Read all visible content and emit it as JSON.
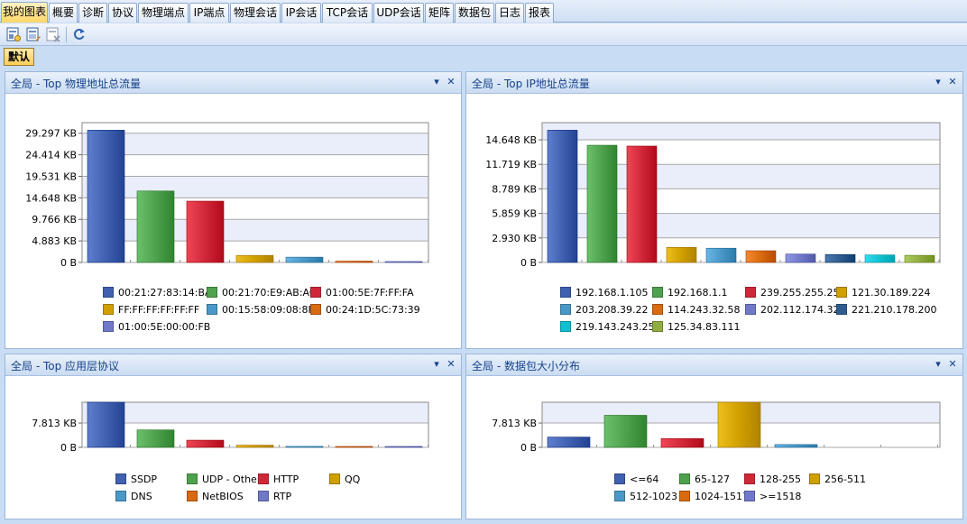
{
  "tabs": [
    {
      "label": "我的图表",
      "active": true
    },
    {
      "label": "概要"
    },
    {
      "label": "诊断"
    },
    {
      "label": "协议"
    },
    {
      "label": "物理端点"
    },
    {
      "label": "IP端点"
    },
    {
      "label": "物理会话"
    },
    {
      "label": "IP会话"
    },
    {
      "label": "TCP会话"
    },
    {
      "label": "UDP会话"
    },
    {
      "label": "矩阵"
    },
    {
      "label": "数据包"
    },
    {
      "label": "日志"
    },
    {
      "label": "报表"
    }
  ],
  "toolbar": {
    "icons": [
      "new-chart-icon",
      "edit-chart-icon",
      "delete-chart-icon",
      "refresh-icon"
    ]
  },
  "view": {
    "default_label": "默认"
  },
  "panel_controls": {
    "dropdown": "▾",
    "close": "✕"
  },
  "colors": {
    "blue": "#4060b0",
    "green": "#4ea24e",
    "red": "#d02838",
    "gold": "#d0a000",
    "sky": "#4a98c8",
    "orange": "#d86a10",
    "lavender": "#7078c8",
    "navy": "#2e5c90",
    "cyan": "#10c0d0",
    "olive": "#90ae40"
  },
  "panels": [
    {
      "title": "全局 - Top 物理地址总流量",
      "chart_data": {
        "type": "bar",
        "categories": [
          "00:21:27:83:14:BA",
          "00:21:70:E9:AB:AC",
          "01:00:5E:7F:FF:FA",
          "FF:FF:FF:FF:FF:FF",
          "00:15:58:09:08:8F",
          "00:24:1D:5C:73:39",
          "01:00:5E:00:00:FB"
        ],
        "values_kb": [
          30000,
          16200,
          13900,
          1600,
          1200,
          300,
          200
        ],
        "ylim_kb": [
          0,
          31700
        ],
        "yticks": [
          "0  B",
          "4.883 KB",
          "9.766 KB",
          "14.648 KB",
          "19.531 KB",
          "24.414 KB",
          "29.297 KB"
        ],
        "ytick_values_kb": [
          0,
          4883,
          9766,
          14648,
          19531,
          24414,
          29297
        ],
        "colors": [
          "blue",
          "green",
          "red",
          "gold",
          "sky",
          "orange",
          "lavender"
        ],
        "legend": "bottom"
      }
    },
    {
      "title": "全局 - Top IP地址总流量",
      "chart_data": {
        "type": "bar",
        "categories": [
          "192.168.1.105",
          "192.168.1.1",
          "239.255.255.250",
          "121.30.189.224",
          "203.208.39.22",
          "114.243.32.58",
          "202.112.174.32",
          "221.210.178.200",
          "219.143.243.254",
          "125.34.83.111"
        ],
        "values_kb": [
          15800,
          14000,
          13900,
          1800,
          1700,
          1400,
          1000,
          950,
          900,
          850
        ],
        "ylim_kb": [
          0,
          16700
        ],
        "yticks": [
          "0  B",
          "2.930 KB",
          "5.859 KB",
          "8.789 KB",
          "11.719 KB",
          "14.648 KB"
        ],
        "ytick_values_kb": [
          0,
          2930,
          5859,
          8789,
          11719,
          14648
        ],
        "colors": [
          "blue",
          "green",
          "red",
          "gold",
          "sky",
          "orange",
          "lavender",
          "navy",
          "cyan",
          "olive"
        ],
        "legend": "bottom"
      }
    },
    {
      "title": "全局 - Top 应用层协议",
      "chart_data": {
        "type": "bar",
        "categories": [
          "SSDP",
          "UDP - Other",
          "HTTP",
          "QQ",
          "DNS",
          "NetBIOS",
          "RTP"
        ],
        "values_kb": [
          14500,
          5600,
          2300,
          700,
          300,
          250,
          100
        ],
        "ylim_kb": [
          0,
          14500
        ],
        "yticks": [
          "0  B",
          "7.813 KB"
        ],
        "ytick_values_kb": [
          0,
          7813
        ],
        "colors": [
          "blue",
          "green",
          "red",
          "gold",
          "sky",
          "orange",
          "lavender"
        ],
        "legend": "bottom"
      }
    },
    {
      "title": "全局 - 数据包大小分布",
      "chart_data": {
        "type": "bar",
        "categories": [
          "<=64",
          "65-127",
          "128-255",
          "256-511",
          "512-1023",
          "1024-1517",
          ">=1518"
        ],
        "values_kb": [
          3300,
          10300,
          2800,
          14500,
          900,
          0,
          0
        ],
        "ylim_kb": [
          0,
          14500
        ],
        "yticks": [
          "0  B",
          "7.813 KB"
        ],
        "ytick_values_kb": [
          0,
          7813
        ],
        "colors": [
          "blue",
          "green",
          "red",
          "gold",
          "sky",
          "orange",
          "lavender"
        ],
        "legend": "bottom"
      }
    }
  ]
}
